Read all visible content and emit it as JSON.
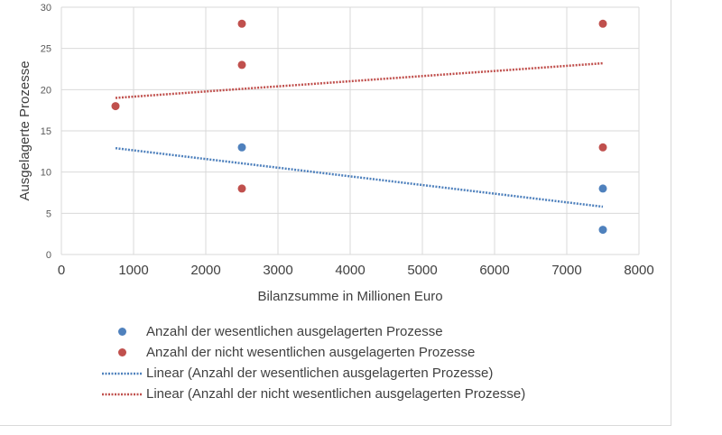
{
  "chart_data": {
    "type": "scatter",
    "xlabel": "Bilanzsumme in Millionen Euro",
    "ylabel": "Ausgelagerte Prozesse",
    "xlim": [
      0,
      8000
    ],
    "ylim": [
      0,
      30
    ],
    "x_ticks": [
      0,
      1000,
      2000,
      3000,
      4000,
      5000,
      6000,
      7000,
      8000
    ],
    "y_ticks": [
      0,
      5,
      10,
      15,
      20,
      25,
      30
    ],
    "grid": true,
    "legend_position": "bottom",
    "series": [
      {
        "name": "Anzahl der wesentlichen ausgelagerten Prozesse",
        "color": "#4f81bd",
        "points": [
          [
            2500,
            13
          ],
          [
            7500,
            8
          ],
          [
            7500,
            3
          ]
        ]
      },
      {
        "name": "Anzahl der nicht wesentlichen ausgelagerten Prozesse",
        "color": "#c0504d",
        "points": [
          [
            750,
            18
          ],
          [
            2500,
            28
          ],
          [
            2500,
            23
          ],
          [
            2500,
            8
          ],
          [
            7500,
            28
          ],
          [
            7500,
            13
          ]
        ]
      }
    ],
    "trendlines": [
      {
        "name": "Linear (Anzahl der wesentlichen ausgelagerten Prozesse)",
        "color": "#4f81bd",
        "from": [
          750,
          12.9
        ],
        "to": [
          7500,
          5.8
        ]
      },
      {
        "name": "Linear (Anzahl der nicht wesentlichen ausgelagerten Prozesse)",
        "color": "#c0504d",
        "from": [
          750,
          19.0
        ],
        "to": [
          7500,
          23.2
        ]
      }
    ]
  }
}
